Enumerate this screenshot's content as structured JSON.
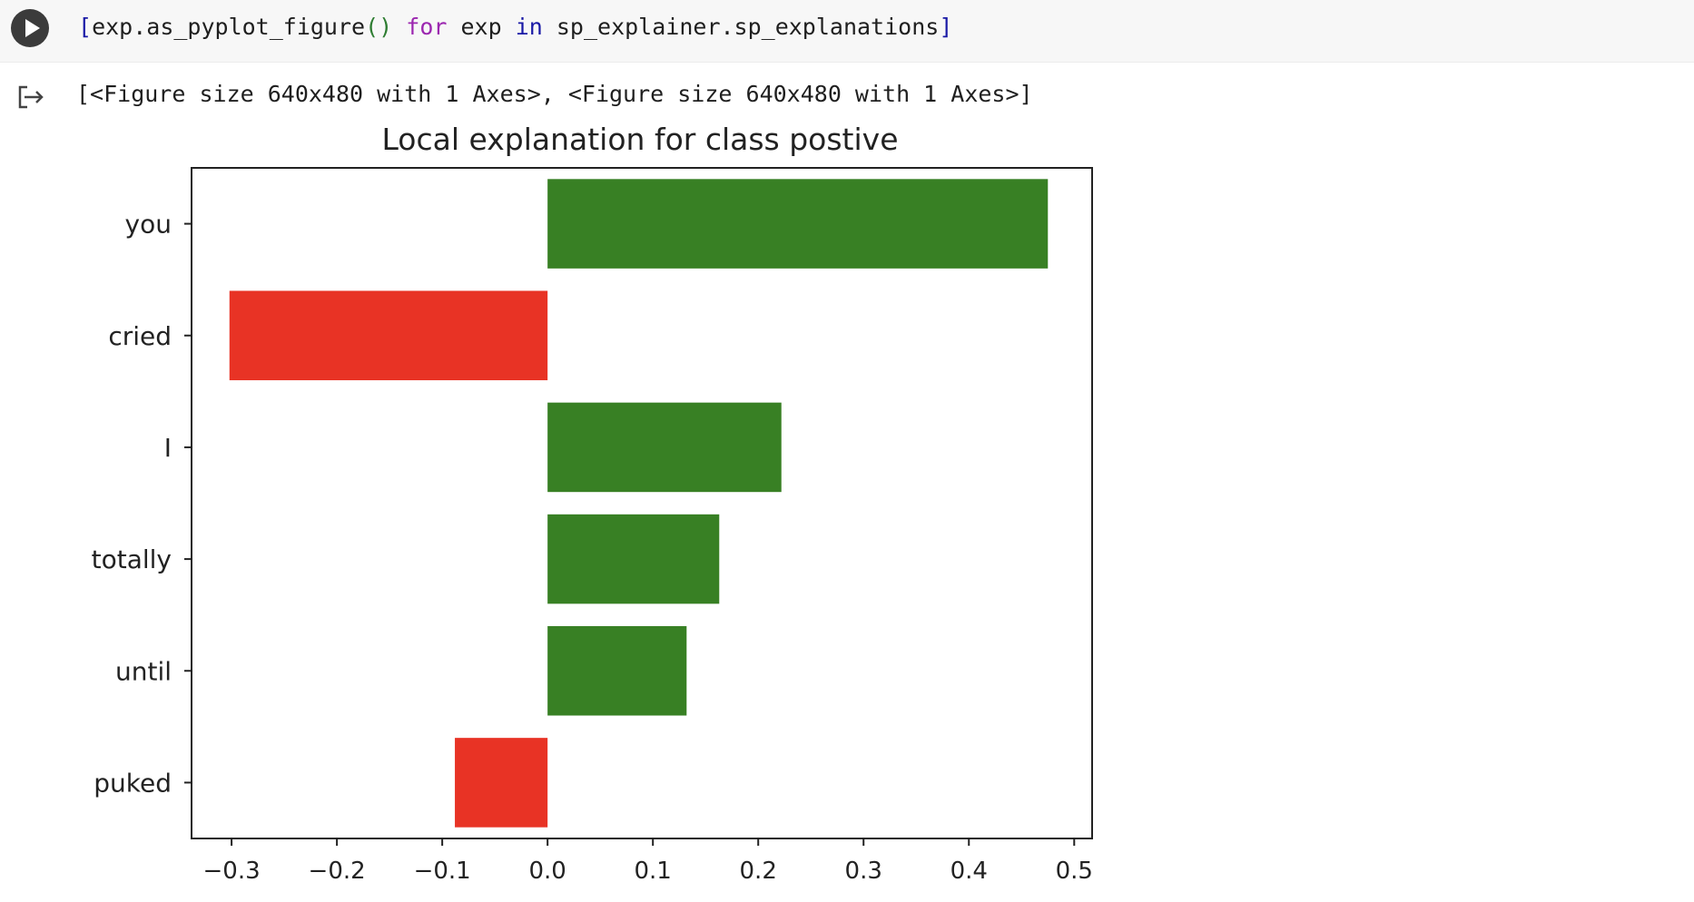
{
  "code": {
    "open_bracket": "[",
    "func": "exp.as_pyplot_figure",
    "parens": "()",
    "kw_for": "for",
    "var": "exp",
    "kw_in": "in",
    "iterable": "sp_explainer.sp_explanations",
    "close_bracket": "]",
    "colors": {
      "bracket": "#1a1aa6",
      "parens": "#2e7d32",
      "kw_for": "#9c27b0",
      "kw_in": "#1a1aa6",
      "text": "#1f1f1f"
    }
  },
  "output": {
    "text": "[<Figure size 640x480 with 1 Axes>, <Figure size 640x480 with 1 Axes>]"
  },
  "icons": {
    "run": "play-icon",
    "output": "output-arrow-icon"
  },
  "chart_data": {
    "type": "bar",
    "orientation": "horizontal",
    "title": "Local explanation for class postive",
    "categories": [
      "you",
      "cried",
      "I",
      "totally",
      "until",
      "puked"
    ],
    "values": [
      0.475,
      -0.302,
      0.222,
      0.163,
      0.132,
      -0.088
    ],
    "xlim": [
      -0.338,
      0.517
    ],
    "xticks": [
      -0.3,
      -0.2,
      -0.1,
      0.0,
      0.1,
      0.2,
      0.3,
      0.4,
      0.5
    ],
    "xtick_labels": [
      "−0.3",
      "−0.2",
      "−0.1",
      "0.0",
      "0.1",
      "0.2",
      "0.3",
      "0.4",
      "0.5"
    ],
    "xlabel": "",
    "ylabel": "",
    "grid": false,
    "colors": {
      "positive": "#388024",
      "negative": "#e83325",
      "axis": "#222222",
      "text": "#222222"
    }
  }
}
